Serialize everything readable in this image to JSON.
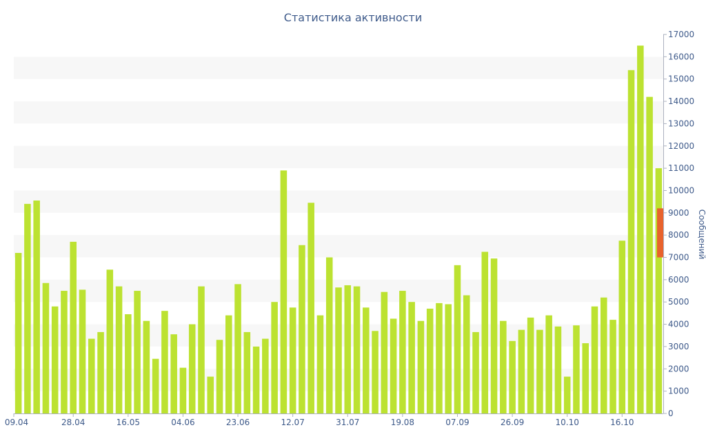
{
  "chart_data": {
    "type": "bar",
    "title": "Статистика активности",
    "xlabel": "",
    "ylabel": "Сообщений",
    "ylim": [
      0,
      17000
    ],
    "y_ticks": [
      0,
      1000,
      2000,
      3000,
      4000,
      5000,
      6000,
      7000,
      8000,
      9000,
      10000,
      11000,
      12000,
      13000,
      14000,
      15000,
      16000,
      17000
    ],
    "x_tick_labels": [
      {
        "label": "09.04",
        "index": 0
      },
      {
        "label": "28.04",
        "index": 6.5
      },
      {
        "label": "16.05",
        "index": 12.5
      },
      {
        "label": "04.06",
        "index": 18.5
      },
      {
        "label": "23.06",
        "index": 24.5
      },
      {
        "label": "12.07",
        "index": 30.5
      },
      {
        "label": "31.07",
        "index": 36.5
      },
      {
        "label": "19.08",
        "index": 42.5
      },
      {
        "label": "07.09",
        "index": 48.5
      },
      {
        "label": "26.09",
        "index": 54.5
      },
      {
        "label": "10.10",
        "index": 60.5
      },
      {
        "label": "16.10",
        "index": 66.5
      }
    ],
    "values": [
      7200,
      9400,
      9550,
      5850,
      4800,
      5500,
      7700,
      5550,
      3350,
      3650,
      6450,
      5700,
      4450,
      5500,
      4150,
      2450,
      4600,
      3550,
      2050,
      4000,
      5700,
      1650,
      3300,
      4400,
      5800,
      3650,
      3000,
      3350,
      5000,
      10900,
      4750,
      7550,
      9450,
      4400,
      7000,
      5650,
      5750,
      5700,
      4750,
      3700,
      5450,
      4250,
      5500,
      5000,
      4150,
      4700,
      4950,
      4900,
      6650,
      5300,
      3650,
      7250,
      6950,
      4150,
      3250,
      3750,
      4300,
      3750,
      4400,
      3900,
      1650,
      3950,
      3150,
      4800,
      5200,
      4200,
      7750,
      15400,
      16500,
      14200,
      11000
    ],
    "highlight": {
      "range": [
        7000,
        9200
      ],
      "color": "#e8622c"
    },
    "bar_color": "#bce231",
    "stripe_color": "#f7f7f7",
    "text_color": "#3e5a8a"
  }
}
